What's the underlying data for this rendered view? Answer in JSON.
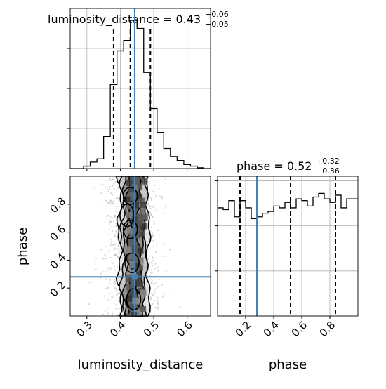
{
  "chart_data": {
    "type": "corner",
    "parameters": [
      "luminosity_distance",
      "phase"
    ],
    "truth": {
      "luminosity_distance": 0.443,
      "phase": 0.28
    },
    "titles": {
      "luminosity_distance": {
        "prefix": "luminosity_distance = ",
        "value": "0.43",
        "plus": "+0.06",
        "minus": "−0.05"
      },
      "phase": {
        "prefix": "phase = ",
        "value": "0.52",
        "plus": "+0.32",
        "minus": "−0.36"
      }
    },
    "axes": {
      "luminosity_distance": {
        "label": "luminosity_distance",
        "range": [
          0.25,
          0.67
        ],
        "ticks": [
          0.3,
          0.4,
          0.5,
          0.6
        ],
        "tick_labels": [
          "0.3",
          "0.4",
          "0.5",
          "0.6"
        ]
      },
      "phase": {
        "label": "phase",
        "range": [
          0.0,
          1.0
        ],
        "ticks": [
          0.2,
          0.4,
          0.6,
          0.8
        ],
        "tick_labels": [
          "0.2",
          "0.4",
          "0.6",
          "0.8"
        ]
      }
    },
    "hist_luminosity_distance": {
      "bin_edges": [
        0.25,
        0.27,
        0.29,
        0.31,
        0.33,
        0.35,
        0.37,
        0.39,
        0.41,
        0.43,
        0.45,
        0.47,
        0.49,
        0.51,
        0.53,
        0.55,
        0.57,
        0.59,
        0.61,
        0.63,
        0.65,
        0.67
      ],
      "counts": [
        0,
        0,
        3,
        8,
        12,
        40,
        105,
        147,
        160,
        185,
        175,
        120,
        75,
        45,
        25,
        15,
        10,
        5,
        3,
        1,
        0
      ],
      "quantiles": [
        0.38,
        0.43,
        0.49
      ],
      "ymax": 200
    },
    "hist_phase": {
      "bin_edges": [
        0.0,
        0.04,
        0.08,
        0.12,
        0.16,
        0.2,
        0.24,
        0.28,
        0.32,
        0.36,
        0.4,
        0.44,
        0.48,
        0.52,
        0.56,
        0.6,
        0.64,
        0.68,
        0.72,
        0.76,
        0.8,
        0.84,
        0.88,
        0.92,
        0.96,
        1.0
      ],
      "counts": [
        120,
        118,
        128,
        110,
        128,
        120,
        108,
        110,
        114,
        116,
        122,
        120,
        126,
        120,
        130,
        128,
        122,
        132,
        136,
        130,
        126,
        134,
        120,
        130,
        130
      ],
      "quantiles": [
        0.16,
        0.52,
        0.84
      ],
      "ymax": 155
    },
    "scatter_2d": {
      "x_range": [
        0.37,
        0.52
      ],
      "y_range": [
        0.0,
        1.0
      ]
    },
    "grid": true
  }
}
